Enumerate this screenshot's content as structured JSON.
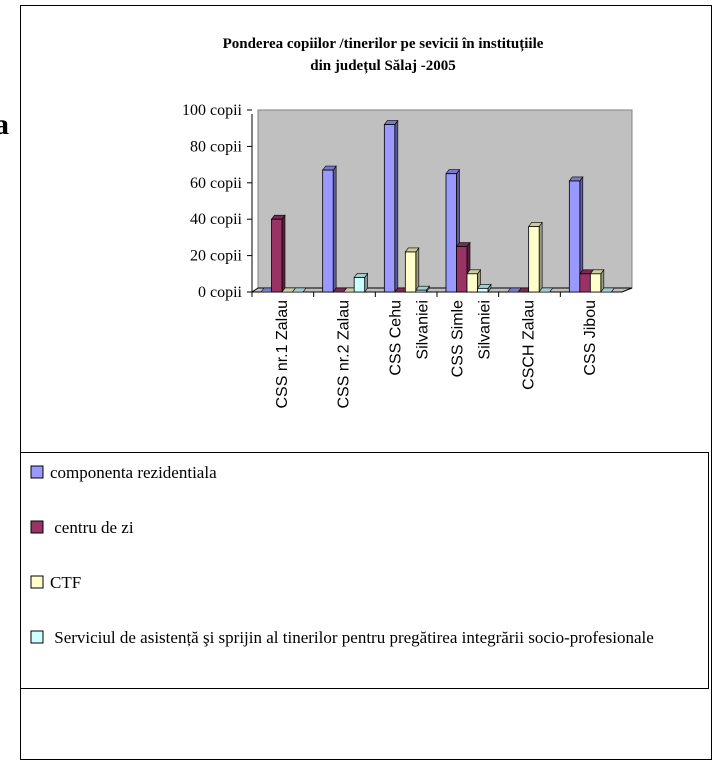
{
  "side_text": "a",
  "chart_data": {
    "type": "bar3d",
    "title": [
      "Ponderea copiilor /tinerilor pe  sevicii în  instituțiile",
      "din județul Sălaj -2005"
    ],
    "categories": [
      [
        "CSS nr.1 Zalau"
      ],
      [
        "CSS nr.2 Zalau"
      ],
      [
        "CSS Cehu",
        "Silvaniei"
      ],
      [
        "CSS Simle",
        "Silvaniei"
      ],
      [
        "CSCH  Zalau"
      ],
      [
        "CSS Jibou"
      ]
    ],
    "series": [
      {
        "name": "componenta rezidentiala",
        "color": "#9999ff",
        "values": [
          0,
          67,
          92,
          65,
          0,
          61
        ]
      },
      {
        "name": " centru de zi",
        "color": "#993366",
        "values": [
          40,
          0,
          0,
          25,
          0,
          10
        ]
      },
      {
        "name": "CTF",
        "color": "#ffffcc",
        "values": [
          0,
          0,
          22,
          10,
          36,
          10
        ]
      },
      {
        "name": " Serviciul de asistență şi sprijin al tinerilor pentru pregătirea integrării socio-profesionale",
        "color": "#ccffff",
        "values": [
          0,
          8,
          1,
          2,
          0,
          0
        ]
      }
    ],
    "ylim": [
      0,
      100
    ],
    "yticks": [
      {
        "value": 0,
        "label": "0 copii"
      },
      {
        "value": 20,
        "label": "20 copii"
      },
      {
        "value": 40,
        "label": "40 copii"
      },
      {
        "value": 60,
        "label": "60 copii"
      },
      {
        "value": 80,
        "label": "80 copii"
      },
      {
        "value": 100,
        "label": "100 copii"
      }
    ],
    "wall_color": "#c0c0c0"
  }
}
